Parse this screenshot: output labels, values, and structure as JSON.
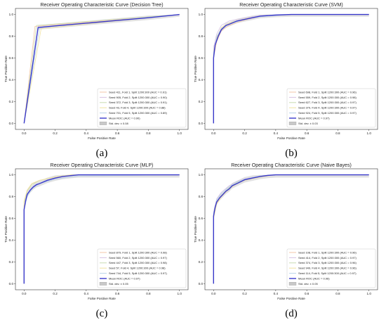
{
  "chart_data": [
    {
      "type": "line",
      "title": "Receiver Operating Characteristic Curve (Decision Tree)",
      "xlabel": "False Positive Rate",
      "ylabel": "True Positive Rate",
      "xlim": [
        0,
        1
      ],
      "ylim": [
        0,
        1
      ],
      "xticks": [
        "0.0",
        "0.2",
        "0.4",
        "0.6",
        "0.8",
        "1.0"
      ],
      "yticks": [
        "0.0",
        "0.2",
        "0.4",
        "0.6",
        "0.8",
        "1.0"
      ],
      "caption": "(a)",
      "legend_position": "lower-right",
      "series": [
        {
          "name": "Seed 411, Fold 1, Split 1200:300 (AUC = 0.91)",
          "color": "#f3c7a8",
          "x": [
            0,
            0.07,
            1
          ],
          "y": [
            0,
            0.89,
            1
          ]
        },
        {
          "name": "Seed 905, Fold 2, Split 1200:300 (AUC = 0.90)",
          "color": "#d7c2e4",
          "x": [
            0,
            0.09,
            1
          ],
          "y": [
            0,
            0.88,
            1
          ]
        },
        {
          "name": "Seed 372, Fold 3, Split 1200:300 (AUC = 0.91)",
          "color": "#c9dcb0",
          "x": [
            0,
            0.08,
            1
          ],
          "y": [
            0,
            0.9,
            1
          ]
        },
        {
          "name": "Seed 43, Fold 4, Split 1200:300 (AUC = 0.88)",
          "color": "#f0e2a0",
          "x": [
            0,
            0.11,
            1
          ],
          "y": [
            0,
            0.87,
            1
          ]
        },
        {
          "name": "Seed 701, Fold 5, Split 1200:300 (AUC = 0.89)",
          "color": "#b8d4e8",
          "x": [
            0,
            0.1,
            1
          ],
          "y": [
            0,
            0.88,
            1
          ]
        }
      ],
      "mean": {
        "name": "Mean ROC (AUC = 0.90)",
        "color": "#3a3acc",
        "x": [
          0,
          0.09,
          0.2,
          0.4,
          0.6,
          0.8,
          1
        ],
        "y": [
          0,
          0.88,
          0.895,
          0.92,
          0.945,
          0.97,
          1
        ]
      },
      "band": {
        "name": "Std. dev. ± 0.08",
        "color": "#c8c8c8",
        "spread": 0.02
      }
    },
    {
      "type": "line",
      "title": "Receiver Operating Characteristic Curve (SVM)",
      "xlabel": "False Positive Rate",
      "ylabel": "True Positive Rate",
      "xlim": [
        0,
        1
      ],
      "ylim": [
        0,
        1
      ],
      "xticks": [
        "0.0",
        "0.2",
        "0.4",
        "0.6",
        "0.8",
        "1.0"
      ],
      "yticks": [
        "0.0",
        "0.2",
        "0.4",
        "0.6",
        "0.8",
        "1.0"
      ],
      "caption": "(b)",
      "legend_position": "lower-right",
      "series": [
        {
          "name": "Seed 698, Fold 1, Split 1200:300 (AUC = 0.96)",
          "color": "#f3c7a8",
          "x": [
            0,
            0,
            0.02,
            0.05,
            0.1,
            0.2,
            0.3,
            0.5,
            1
          ],
          "y": [
            0,
            0.6,
            0.75,
            0.85,
            0.9,
            0.95,
            0.98,
            1,
            1
          ]
        },
        {
          "name": "Seed 559, Fold 2, Split 1200:300 (AUC = 0.98)",
          "color": "#d7c2e4",
          "x": [
            0,
            0,
            0.02,
            0.05,
            0.1,
            0.2,
            0.3,
            0.5,
            1
          ],
          "y": [
            0,
            0.7,
            0.82,
            0.9,
            0.94,
            0.97,
            0.99,
            1,
            1
          ]
        },
        {
          "name": "Seed 627, Fold 3, Split 1200:300 (AUC = 0.97)",
          "color": "#c9dcb0",
          "x": [
            0,
            0,
            0.02,
            0.05,
            0.1,
            0.2,
            0.3,
            0.5,
            1
          ],
          "y": [
            0,
            0.64,
            0.78,
            0.87,
            0.92,
            0.96,
            0.985,
            1,
            1
          ]
        },
        {
          "name": "Seed 379, Fold 4, Split 1200:300 (AUC = 0.97)",
          "color": "#f0e2a0",
          "x": [
            0,
            0,
            0.02,
            0.05,
            0.1,
            0.2,
            0.3,
            0.5,
            1
          ],
          "y": [
            0,
            0.66,
            0.79,
            0.88,
            0.92,
            0.96,
            0.985,
            1,
            1
          ]
        },
        {
          "name": "Seed 924, Fold 5, Split 1200:300 (AUC = 0.97)",
          "color": "#b8d4e8",
          "x": [
            0,
            0,
            0.02,
            0.05,
            0.1,
            0.2,
            0.3,
            0.5,
            1
          ],
          "y": [
            0,
            0.65,
            0.8,
            0.87,
            0.91,
            0.955,
            0.98,
            1,
            1
          ]
        }
      ],
      "mean": {
        "name": "Mean ROC (AUC = 0.97)",
        "color": "#3a3acc",
        "x": [
          0,
          0,
          0.01,
          0.03,
          0.05,
          0.08,
          0.1,
          0.15,
          0.2,
          0.25,
          0.3,
          0.4,
          0.5,
          1
        ],
        "y": [
          0,
          0.6,
          0.72,
          0.8,
          0.86,
          0.9,
          0.91,
          0.94,
          0.955,
          0.97,
          0.985,
          0.995,
          1,
          1
        ]
      },
      "band": {
        "name": "Std. dev. ± 0.03",
        "color": "#c8c8c8",
        "spread": 0.02
      }
    },
    {
      "type": "line",
      "title": "Receiver Operating Characteristic Curve (MLP)",
      "xlabel": "False Positive Rate",
      "ylabel": "True Positive Rate",
      "xlim": [
        0,
        1
      ],
      "ylim": [
        0,
        1
      ],
      "xticks": [
        "0.0",
        "0.2",
        "0.4",
        "0.6",
        "0.8",
        "1.0"
      ],
      "yticks": [
        "0.0",
        "0.2",
        "0.4",
        "0.6",
        "0.8",
        "1.0"
      ],
      "caption": "(c)",
      "legend_position": "lower-right",
      "series": [
        {
          "name": "Seed 879, Fold 1, Split 1200:300 (AUC = 0.98)",
          "color": "#f3c7a8",
          "x": [
            0,
            0,
            0.02,
            0.05,
            0.1,
            0.2,
            0.3,
            1
          ],
          "y": [
            0,
            0.75,
            0.86,
            0.92,
            0.95,
            0.98,
            1,
            1
          ]
        },
        {
          "name": "Seed 560, Fold 2, Split 1200:300 (AUC = 0.97)",
          "color": "#d7c2e4",
          "x": [
            0,
            0,
            0.02,
            0.05,
            0.1,
            0.2,
            0.35,
            1
          ],
          "y": [
            0,
            0.7,
            0.82,
            0.88,
            0.92,
            0.96,
            0.99,
            1
          ]
        },
        {
          "name": "Seed 447, Fold 3, Split 1200:300 (AUC = 0.98)",
          "color": "#c9dcb0",
          "x": [
            0,
            0,
            0.02,
            0.05,
            0.1,
            0.2,
            0.3,
            1
          ],
          "y": [
            0,
            0.74,
            0.85,
            0.91,
            0.95,
            0.98,
            1,
            1
          ]
        },
        {
          "name": "Seed 57, Fold 4, Split 1200:300 (AUC = 0.98)",
          "color": "#f0e2a0",
          "x": [
            0,
            0,
            0.02,
            0.05,
            0.1,
            0.2,
            0.3,
            1
          ],
          "y": [
            0,
            0.76,
            0.86,
            0.92,
            0.95,
            0.98,
            1,
            1
          ]
        },
        {
          "name": "Seed 744, Fold 5, Split 1200:300 (AUC = 0.97)",
          "color": "#b8d4e8",
          "x": [
            0,
            0,
            0.02,
            0.05,
            0.1,
            0.2,
            0.35,
            1
          ],
          "y": [
            0,
            0.68,
            0.8,
            0.87,
            0.92,
            0.96,
            0.99,
            1
          ]
        }
      ],
      "mean": {
        "name": "Mean ROC (AUC = 0.97)",
        "color": "#3a3acc",
        "x": [
          0,
          0,
          0.01,
          0.02,
          0.04,
          0.06,
          0.08,
          0.1,
          0.15,
          0.2,
          0.25,
          0.3,
          0.35,
          1
        ],
        "y": [
          0,
          0.68,
          0.76,
          0.82,
          0.86,
          0.89,
          0.91,
          0.92,
          0.95,
          0.97,
          0.985,
          0.993,
          1,
          1
        ]
      },
      "band": {
        "name": "Std. dev. ± 0.05",
        "color": "#c8c8c8",
        "spread": 0.025
      }
    },
    {
      "type": "line",
      "title": "Receiver Operating Characteristic Curve (Naive Bayes)",
      "xlabel": "False Positive Rate",
      "ylabel": "True Positive Rate",
      "xlim": [
        0,
        1
      ],
      "ylim": [
        0,
        1
      ],
      "xticks": [
        "0.0",
        "0.2",
        "0.4",
        "0.6",
        "0.8",
        "1.0"
      ],
      "yticks": [
        "0.0",
        "0.2",
        "0.4",
        "0.6",
        "0.8",
        "1.0"
      ],
      "caption": "(d)",
      "legend_position": "lower-right",
      "series": [
        {
          "name": "Seed 108, Fold 1, Split 1200:300 (AUC = 0.96)",
          "color": "#f3c7a8",
          "x": [
            0,
            0,
            0.02,
            0.05,
            0.1,
            0.15,
            0.2,
            0.3,
            0.4,
            1
          ],
          "y": [
            0,
            0.6,
            0.74,
            0.8,
            0.87,
            0.92,
            0.95,
            0.98,
            1,
            1
          ]
        },
        {
          "name": "Seed 414, Fold 2, Split 1200:300 (AUC = 0.97)",
          "color": "#d7c2e4",
          "x": [
            0,
            0,
            0.02,
            0.05,
            0.1,
            0.15,
            0.2,
            0.3,
            0.4,
            1
          ],
          "y": [
            0,
            0.66,
            0.78,
            0.84,
            0.9,
            0.94,
            0.965,
            0.99,
            1,
            1
          ]
        },
        {
          "name": "Seed 374, Fold 3, Split 1200:300 (AUC = 0.96)",
          "color": "#c9dcb0",
          "x": [
            0,
            0,
            0.02,
            0.05,
            0.1,
            0.15,
            0.2,
            0.3,
            0.4,
            1
          ],
          "y": [
            0,
            0.62,
            0.75,
            0.81,
            0.88,
            0.93,
            0.955,
            0.985,
            1,
            1
          ]
        },
        {
          "name": "Seed 949, Fold 4, Split 1200:300 (AUC = 0.96)",
          "color": "#f0e2a0",
          "x": [
            0,
            0,
            0.02,
            0.05,
            0.1,
            0.15,
            0.2,
            0.3,
            0.4,
            1
          ],
          "y": [
            0,
            0.6,
            0.73,
            0.8,
            0.87,
            0.92,
            0.95,
            0.98,
            1,
            1
          ]
        },
        {
          "name": "Seed 114, Fold 5, Split 1200:300 (AUC = 0.97)",
          "color": "#b8d4e8",
          "x": [
            0,
            0,
            0.02,
            0.05,
            0.1,
            0.15,
            0.2,
            0.3,
            0.4,
            1
          ],
          "y": [
            0,
            0.65,
            0.77,
            0.83,
            0.89,
            0.935,
            0.96,
            0.99,
            1,
            1
          ]
        }
      ],
      "mean": {
        "name": "Mean ROC (AUC = 0.96)",
        "color": "#3a3acc",
        "x": [
          0,
          0,
          0.01,
          0.02,
          0.04,
          0.06,
          0.08,
          0.1,
          0.12,
          0.15,
          0.2,
          0.25,
          0.3,
          0.35,
          0.4,
          1
        ],
        "y": [
          0,
          0.62,
          0.7,
          0.75,
          0.79,
          0.82,
          0.85,
          0.87,
          0.9,
          0.92,
          0.955,
          0.97,
          0.985,
          0.995,
          1,
          1
        ]
      },
      "band": {
        "name": "Std. dev. ± 0.05",
        "color": "#c8c8c8",
        "spread": 0.025
      }
    }
  ]
}
